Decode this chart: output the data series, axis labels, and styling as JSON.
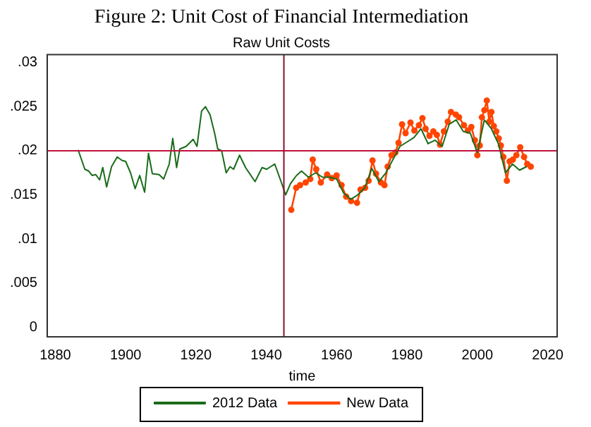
{
  "chart_data": {
    "type": "line",
    "title": "Figure 2: Unit Cost of Financial Intermediation",
    "subtitle": "Raw Unit Costs",
    "xlabel": "time",
    "xlim": [
      1877.7,
      2022.7
    ],
    "xticks": [
      1880,
      1900,
      1920,
      1940,
      1960,
      1980,
      2000,
      2020
    ],
    "ylim": [
      -0.0011,
      0.0309
    ],
    "yticks": [
      {
        "value": 0,
        "label": "0"
      },
      {
        "value": 0.005,
        "label": ".005"
      },
      {
        "value": 0.01,
        "label": ".01"
      },
      {
        "value": 0.015,
        "label": ".015"
      },
      {
        "value": 0.02,
        "label": ".02"
      },
      {
        "value": 0.025,
        "label": ".025"
      },
      {
        "value": 0.03,
        "label": ".03"
      }
    ],
    "grid": false,
    "legend": "bottom",
    "ref_lines": [
      {
        "axis": "y",
        "value": 0.02,
        "color": "#c0103a"
      },
      {
        "axis": "x",
        "value": 1945,
        "color": "#8b1030"
      }
    ],
    "series": [
      {
        "name": "2012 Data",
        "color": "#1a6b1a",
        "marker": "none",
        "x": [
          1886.5,
          1888.4,
          1889.5,
          1890.5,
          1891.5,
          1892.6,
          1893.5,
          1894.6,
          1896,
          1897.6,
          1899,
          1900,
          1901.4,
          1902.7,
          1904,
          1905.4,
          1906.5,
          1907.6,
          1909.5,
          1910.8,
          1912.4,
          1913.4,
          1914.5,
          1915.4,
          1917.2,
          1919.2,
          1920.3,
          1921.6,
          1922.7,
          1924,
          1925.3,
          1926.2,
          1927.3,
          1928.6,
          1929.7,
          1930.7,
          1932.4,
          1934.1,
          1936.8,
          1938.8,
          1940.1,
          1942.4,
          1944.2,
          1945.5,
          1946.9,
          1948.6,
          1950,
          1952,
          1954,
          1956,
          1958,
          1960,
          1962,
          1964,
          1966,
          1968,
          1970,
          1972,
          1974,
          1976,
          1978,
          1980,
          1982,
          1984,
          1986,
          1988,
          1990,
          1992,
          1994,
          1996,
          1998,
          2000,
          2002,
          2004,
          2006,
          2008,
          2010,
          2012,
          2014
        ],
        "values": [
          0.0201,
          0.0179,
          0.0177,
          0.0172,
          0.0173,
          0.0167,
          0.0181,
          0.0159,
          0.0182,
          0.0193,
          0.0189,
          0.0188,
          0.0175,
          0.0157,
          0.0172,
          0.0153,
          0.0197,
          0.0174,
          0.0173,
          0.0168,
          0.0185,
          0.0214,
          0.0181,
          0.0202,
          0.0205,
          0.0213,
          0.0205,
          0.0245,
          0.025,
          0.0241,
          0.022,
          0.0202,
          0.02,
          0.0175,
          0.0182,
          0.0179,
          0.0195,
          0.0181,
          0.0165,
          0.0181,
          0.0179,
          0.0185,
          0.0165,
          0.015,
          0.0163,
          0.0172,
          0.0177,
          0.017,
          0.0175,
          0.017,
          0.017,
          0.0168,
          0.0152,
          0.0145,
          0.015,
          0.0158,
          0.018,
          0.0165,
          0.0175,
          0.019,
          0.0205,
          0.021,
          0.0215,
          0.0225,
          0.0208,
          0.0212,
          0.0205,
          0.023,
          0.0235,
          0.0222,
          0.022,
          0.0198,
          0.0235,
          0.0225,
          0.0208,
          0.0175,
          0.0185,
          0.0178,
          0.0182
        ]
      },
      {
        "name": "New Data",
        "color": "#ff4500",
        "marker": "circle",
        "x": [
          1947.1,
          1948.5,
          1949.6,
          1951.2,
          1952.5,
          1953.2,
          1954.2,
          1955.5,
          1957.3,
          1958.6,
          1960,
          1961.4,
          1962.7,
          1964.1,
          1965.8,
          1966.8,
          1968.1,
          1969.1,
          1970.2,
          1971.2,
          1972.6,
          1973.6,
          1974.5,
          1975.6,
          1976.7,
          1977.6,
          1978.6,
          1979.6,
          1981,
          1982.1,
          1983.4,
          1984.4,
          1985.3,
          1986.4,
          1987.5,
          1988.5,
          1989.4,
          1990.5,
          1991.6,
          1992.5,
          1993.9,
          1994.8,
          1996.2,
          1997.3,
          1998.3,
          1999.3,
          2000,
          2000.7,
          2001.3,
          2002,
          2002.7,
          2003.4,
          2004,
          2004.7,
          2005.4,
          2006.1,
          2006.7,
          2007.4,
          2008.4,
          2009.2,
          2010.1,
          2011.1,
          2012.2,
          2013.3,
          2014.2,
          2015.2
        ],
        "values": [
          0.0133,
          0.0158,
          0.0161,
          0.0164,
          0.0168,
          0.019,
          0.0179,
          0.0164,
          0.0173,
          0.0169,
          0.0172,
          0.0161,
          0.0148,
          0.0143,
          0.0141,
          0.0156,
          0.0158,
          0.0166,
          0.0189,
          0.0174,
          0.0164,
          0.0161,
          0.0182,
          0.0195,
          0.0198,
          0.0209,
          0.023,
          0.022,
          0.0232,
          0.0223,
          0.0229,
          0.0237,
          0.0225,
          0.0217,
          0.0222,
          0.0218,
          0.0207,
          0.0222,
          0.0233,
          0.0244,
          0.0241,
          0.0238,
          0.0229,
          0.0223,
          0.0227,
          0.0212,
          0.0195,
          0.0206,
          0.0238,
          0.0246,
          0.0257,
          0.0233,
          0.0244,
          0.0228,
          0.0222,
          0.0214,
          0.0206,
          0.0193,
          0.0166,
          0.0188,
          0.019,
          0.0195,
          0.0204,
          0.0193,
          0.0185,
          0.0182
        ]
      }
    ]
  }
}
